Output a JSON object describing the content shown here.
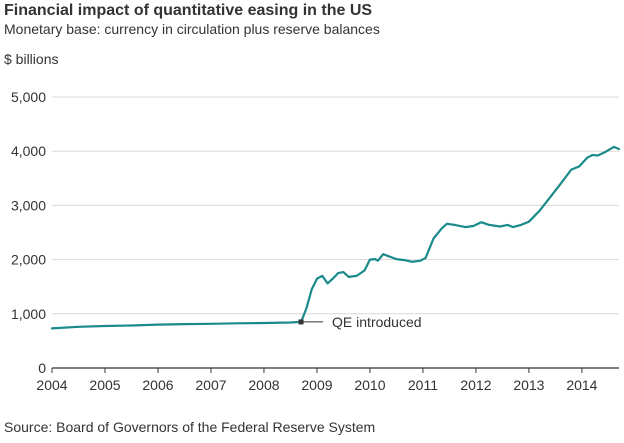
{
  "header": {
    "title": "Financial impact of quantitative easing in the US",
    "subtitle": "Monetary base: currency in circulation plus reserve balances",
    "unit_label": "$ billions"
  },
  "footer": {
    "source": "Source: Board of Governors of the Federal Reserve System"
  },
  "colors": {
    "line": "#1a8a8a",
    "grid": "#d9d9d9",
    "axis": "#333333",
    "marker": "#333333"
  },
  "chart_data": {
    "type": "line",
    "title": "Financial impact of quantitative easing in the US",
    "subtitle": "Monetary base: currency in circulation plus reserve balances",
    "xlabel": "",
    "ylabel": "$ billions",
    "xlim": [
      2004,
      2014.7
    ],
    "ylim": [
      0,
      5000
    ],
    "grid": true,
    "x_ticks": [
      2004,
      2005,
      2006,
      2007,
      2008,
      2009,
      2010,
      2011,
      2012,
      2013,
      2014
    ],
    "x_tick_labels": [
      "2004",
      "2005",
      "2006",
      "2007",
      "2008",
      "2009",
      "2010",
      "2011",
      "2012",
      "2013",
      "2014"
    ],
    "y_ticks": [
      0,
      1000,
      2000,
      3000,
      4000,
      5000
    ],
    "y_tick_labels": [
      "0",
      "1,000",
      "2,000",
      "3,000",
      "4,000",
      "5,000"
    ],
    "annotation": {
      "label": "QE introduced",
      "x": 2008.7,
      "y": 850
    },
    "series": [
      {
        "name": "Monetary base",
        "x": [
          2004.0,
          2004.5,
          2005.0,
          2005.5,
          2006.0,
          2006.5,
          2007.0,
          2007.5,
          2008.0,
          2008.5,
          2008.7,
          2008.8,
          2008.9,
          2009.0,
          2009.1,
          2009.2,
          2009.3,
          2009.4,
          2009.5,
          2009.6,
          2009.75,
          2009.9,
          2010.0,
          2010.1,
          2010.15,
          2010.25,
          2010.5,
          2010.65,
          2010.8,
          2010.95,
          2011.05,
          2011.2,
          2011.35,
          2011.45,
          2011.6,
          2011.8,
          2011.95,
          2012.1,
          2012.25,
          2012.45,
          2012.6,
          2012.7,
          2012.85,
          2013.0,
          2013.2,
          2013.4,
          2013.6,
          2013.8,
          2013.95,
          2014.1,
          2014.2,
          2014.3,
          2014.45,
          2014.6,
          2014.7
        ],
        "y": [
          730,
          760,
          775,
          785,
          800,
          810,
          815,
          825,
          830,
          840,
          850,
          1100,
          1450,
          1650,
          1700,
          1560,
          1650,
          1750,
          1770,
          1680,
          1700,
          1800,
          2000,
          2010,
          1980,
          2100,
          2010,
          1990,
          1960,
          1980,
          2030,
          2390,
          2570,
          2660,
          2640,
          2600,
          2620,
          2690,
          2640,
          2610,
          2640,
          2600,
          2640,
          2700,
          2900,
          3150,
          3400,
          3660,
          3720,
          3880,
          3930,
          3920,
          3990,
          4080,
          4040
        ]
      }
    ]
  }
}
